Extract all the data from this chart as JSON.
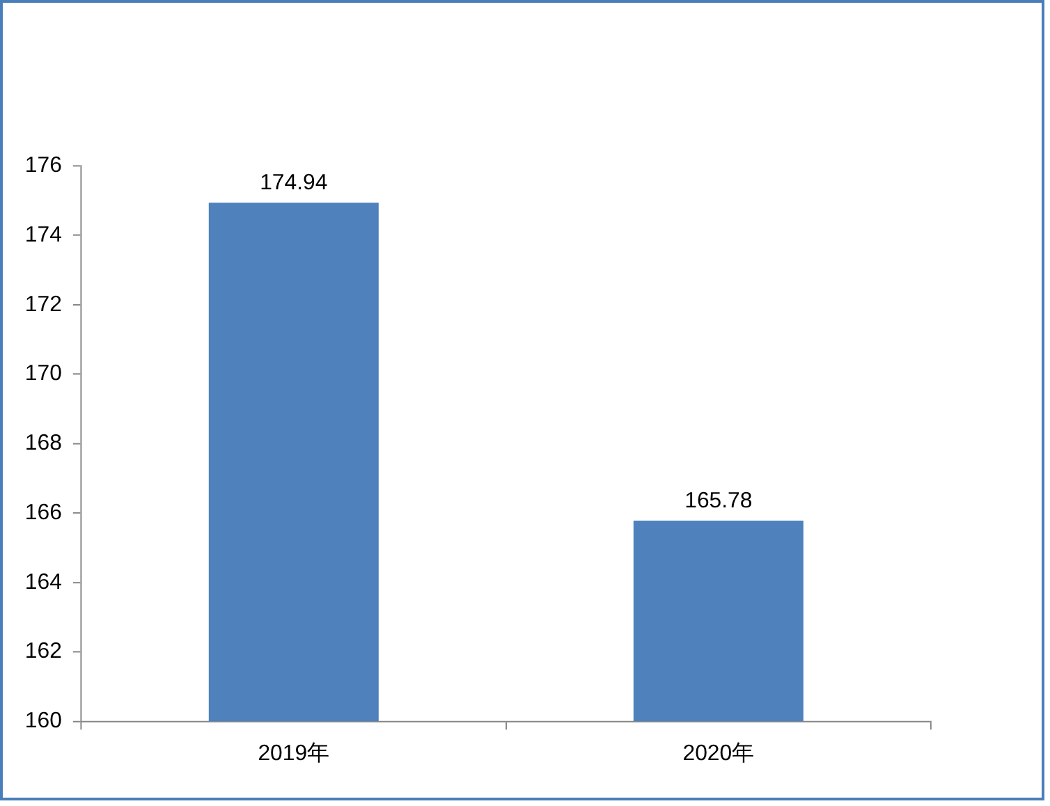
{
  "chart_data": {
    "type": "bar",
    "categories": [
      "2019年",
      "2020年"
    ],
    "values": [
      174.94,
      165.78
    ],
    "color": "#4f81bd",
    "ylim": [
      160,
      176
    ],
    "yticks": [
      160,
      162,
      164,
      166,
      168,
      170,
      172,
      174,
      176
    ],
    "data_labels": true,
    "grid": false
  }
}
